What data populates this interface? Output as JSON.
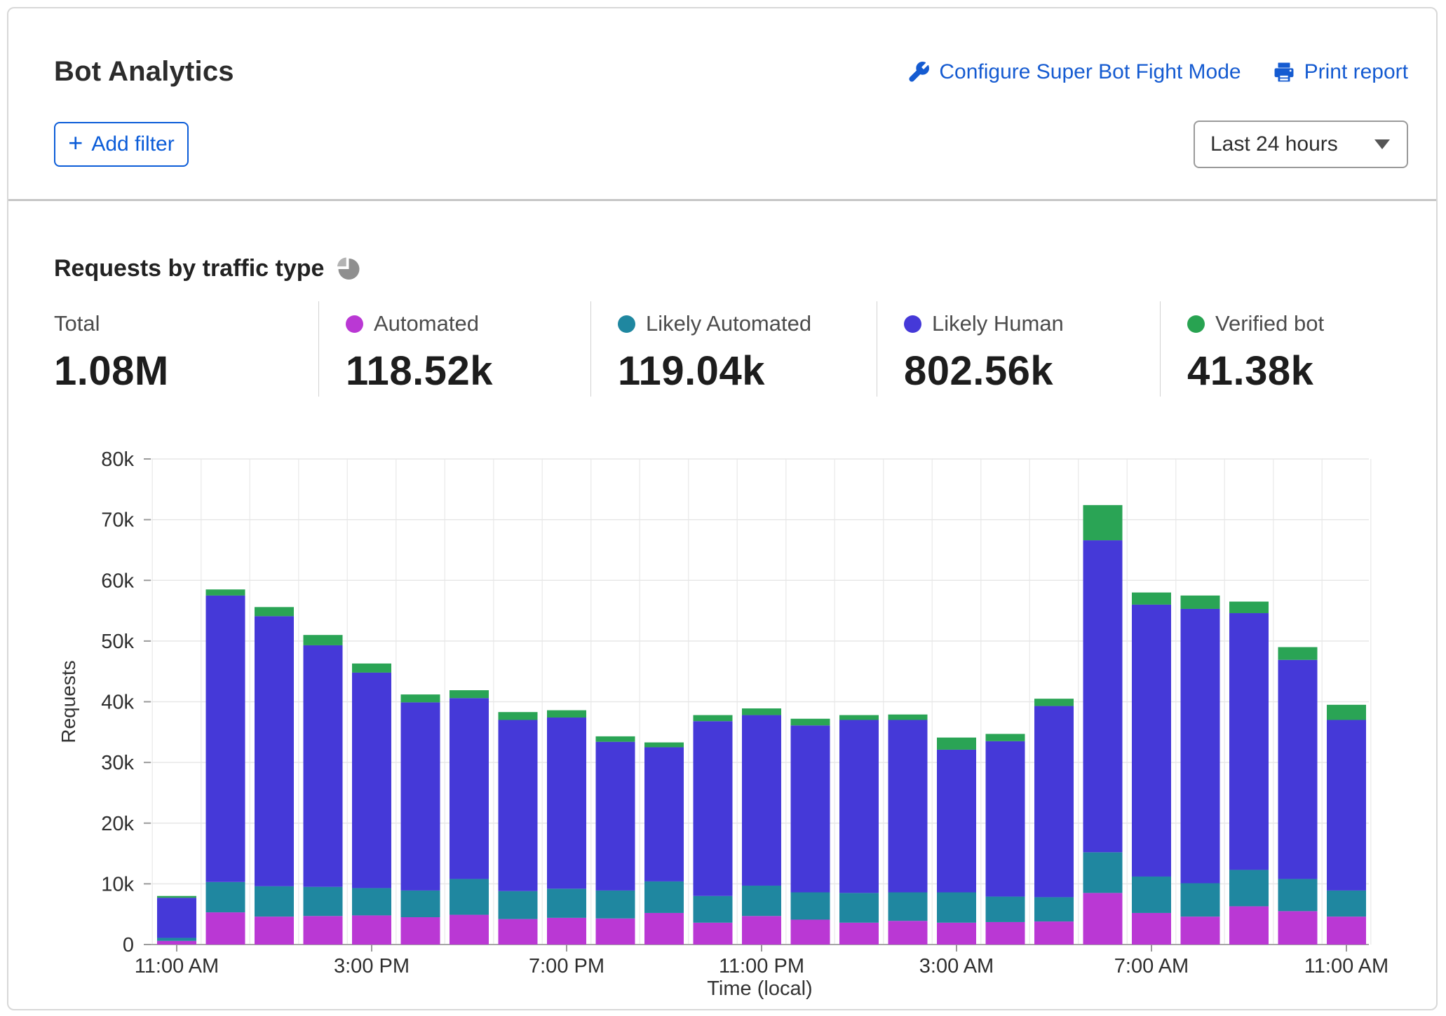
{
  "header": {
    "title": "Bot Analytics",
    "configure_link": "Configure Super Bot Fight Mode",
    "print_link": "Print report",
    "add_filter_label": "Add filter",
    "plus_glyph": "+",
    "time_range": "Last 24 hours"
  },
  "section": {
    "heading": "Requests by traffic type"
  },
  "stats": [
    {
      "label": "Total",
      "value": "1.08M",
      "color": null
    },
    {
      "label": "Automated",
      "value": "118.52k",
      "color": "#ba38d4"
    },
    {
      "label": "Likely Automated",
      "value": "119.04k",
      "color": "#1f87a0"
    },
    {
      "label": "Likely Human",
      "value": "802.56k",
      "color": "#4539d8"
    },
    {
      "label": "Verified bot",
      "value": "41.38k",
      "color": "#28a351"
    }
  ],
  "colors": {
    "link_blue": "#155bd1",
    "accent_blue": "#0b5cd8",
    "grid": "#e7e7e7",
    "grid_vertical": "#ededed",
    "axis": "#a6a6a6",
    "tick": "#9a9a9a",
    "pie_icon": "#8f8f8f"
  },
  "chart_data": {
    "type": "bar",
    "stacked": true,
    "title": "Requests by traffic type",
    "xlabel": "Time (local)",
    "ylabel": "Requests",
    "ylim": [
      0,
      80000
    ],
    "grid": true,
    "legend_position": "top",
    "yticks": [
      "0",
      "10k",
      "20k",
      "30k",
      "40k",
      "50k",
      "60k",
      "70k",
      "80k"
    ],
    "x_tick_labels": [
      "11:00 AM",
      "3:00 PM",
      "7:00 PM",
      "11:00 PM",
      "3:00 AM",
      "7:00 AM",
      "11:00 AM"
    ],
    "x_tick_positions": [
      0,
      4,
      8,
      12,
      16,
      20,
      24
    ],
    "categories": [
      "11:00 AM",
      "12:00 PM",
      "1:00 PM",
      "2:00 PM",
      "3:00 PM",
      "4:00 PM",
      "5:00 PM",
      "6:00 PM",
      "7:00 PM",
      "8:00 PM",
      "9:00 PM",
      "10:00 PM",
      "11:00 PM",
      "12:00 AM",
      "1:00 AM",
      "2:00 AM",
      "3:00 AM",
      "4:00 AM",
      "5:00 AM",
      "6:00 AM",
      "7:00 AM",
      "8:00 AM",
      "9:00 AM",
      "10:00 AM",
      "11:00 AM"
    ],
    "series": [
      {
        "name": "Automated",
        "color": "#ba38d4",
        "values": [
          600,
          5300,
          4600,
          4700,
          4800,
          4500,
          4900,
          4200,
          4400,
          4300,
          5200,
          3600,
          4700,
          4100,
          3600,
          3900,
          3600,
          3700,
          3800,
          8500,
          5200,
          4600,
          6300,
          5500,
          4600
        ]
      },
      {
        "name": "Likely Automated",
        "color": "#1f87a0",
        "values": [
          500,
          5000,
          5000,
          4800,
          4500,
          4400,
          5900,
          4600,
          4800,
          4600,
          5200,
          4400,
          5000,
          4500,
          4900,
          4700,
          5000,
          4200,
          4000,
          6700,
          6000,
          5500,
          6000,
          5300,
          4300
        ]
      },
      {
        "name": "Likely Human",
        "color": "#4539d8",
        "values": [
          6600,
          47200,
          44500,
          39800,
          35500,
          31000,
          29800,
          28200,
          28200,
          24500,
          22100,
          28800,
          28100,
          27500,
          28500,
          28400,
          23500,
          25600,
          31500,
          51400,
          44800,
          45200,
          42300,
          36100,
          28100
        ]
      },
      {
        "name": "Verified bot",
        "color": "#2aa455",
        "values": [
          300,
          1000,
          1500,
          1700,
          1500,
          1300,
          1300,
          1300,
          1200,
          900,
          800,
          1000,
          1100,
          1100,
          800,
          900,
          2000,
          1200,
          1200,
          5800,
          2000,
          2200,
          1900,
          2100,
          2500
        ]
      }
    ]
  }
}
